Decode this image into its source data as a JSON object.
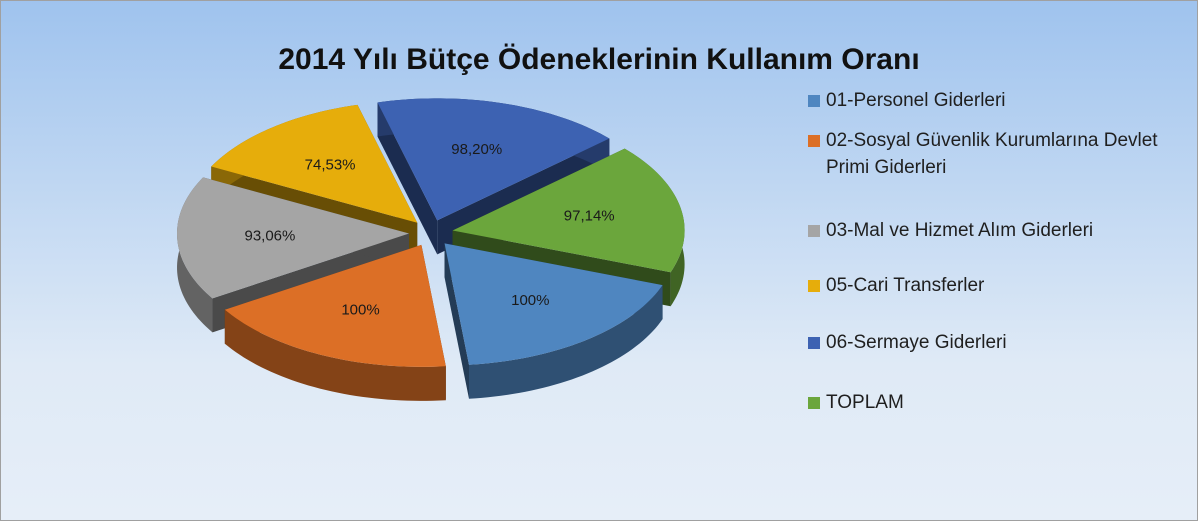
{
  "chart_data": {
    "type": "pie",
    "title": "2014 Yılı Bütçe Ödeneklerinin Kullanım Oranı",
    "categories": [
      "01-Personel Giderleri",
      "02-Sosyal Güvenlik Kurumlarına Devlet Primi Giderleri",
      "03-Mal ve Hizmet Alım Giderleri",
      "05-Cari Transferler",
      "06-Sermaye Giderleri",
      "TOPLAM"
    ],
    "values": [
      100,
      100,
      93.06,
      74.53,
      98.2,
      97.14
    ],
    "value_labels": [
      "100%",
      "100%",
      "93,06%",
      "74,53%",
      "98,20%",
      "97,14%"
    ],
    "colors": [
      "#4f86c0",
      "#dc6f26",
      "#a5a5a5",
      "#e6ad0b",
      "#3d62b2",
      "#6ba63c"
    ],
    "legend": "right"
  }
}
